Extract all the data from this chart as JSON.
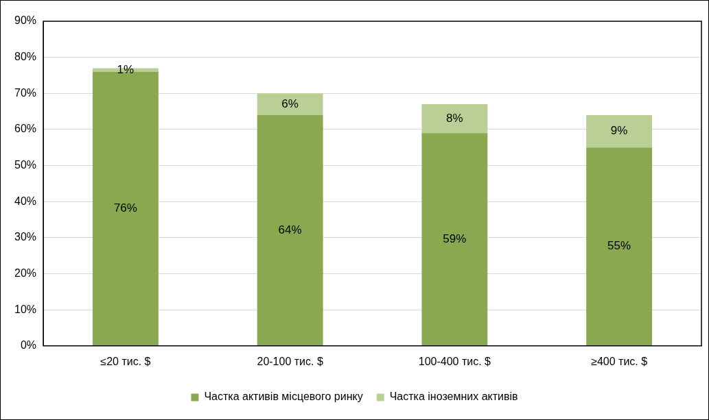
{
  "chart_data": {
    "type": "bar",
    "stacked": true,
    "categories": [
      "≤20 тис. $",
      "20-100 тис. $",
      "100-400 тис. $",
      "≥400 тис. $"
    ],
    "series": [
      {
        "name": "Частка активів місцевого ринку",
        "color": "#8aa84f",
        "values": [
          76,
          64,
          59,
          55
        ],
        "value_labels": [
          "76%",
          "64%",
          "59%",
          "55%"
        ]
      },
      {
        "name": "Частка іноземних активів",
        "color": "#b9cf96",
        "values": [
          1,
          6,
          8,
          9
        ],
        "value_labels": [
          "1%",
          "6%",
          "8%",
          "9%"
        ]
      }
    ],
    "ylim": [
      0,
      90
    ],
    "yticks": [
      {
        "value": 0,
        "label": "0%"
      },
      {
        "value": 10,
        "label": "10%"
      },
      {
        "value": 20,
        "label": "20%"
      },
      {
        "value": 30,
        "label": "30%"
      },
      {
        "value": 40,
        "label": "40%"
      },
      {
        "value": 50,
        "label": "50%"
      },
      {
        "value": 60,
        "label": "60%"
      },
      {
        "value": 70,
        "label": "70%"
      },
      {
        "value": 80,
        "label": "80%"
      },
      {
        "value": 90,
        "label": "90%"
      }
    ],
    "grid": "y",
    "legend": "bottom"
  }
}
